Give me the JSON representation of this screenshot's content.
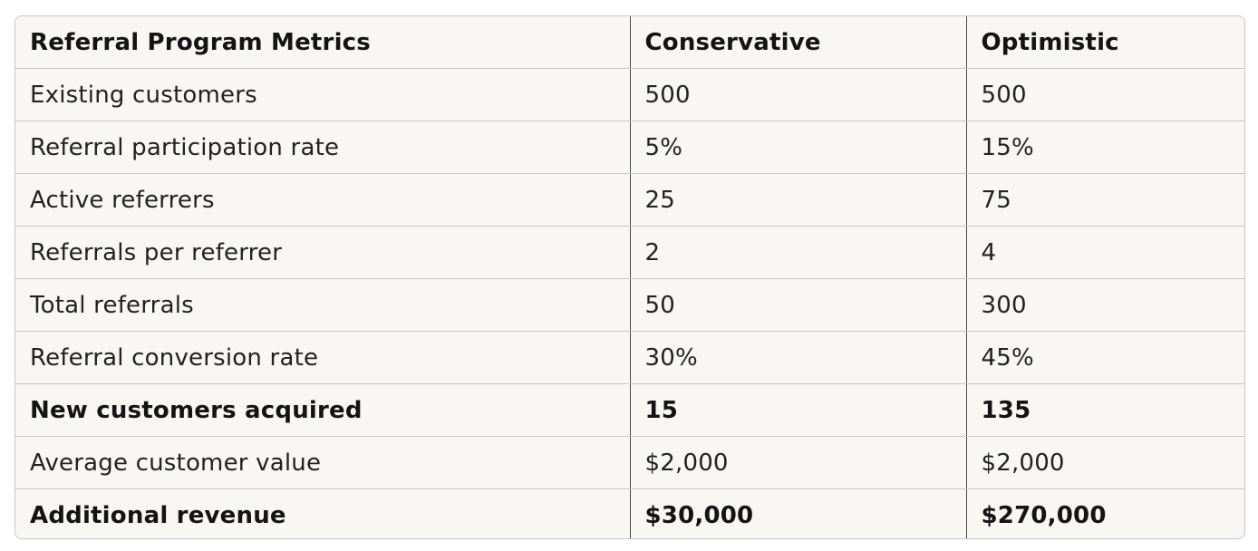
{
  "table": {
    "headers": [
      "Referral Program Metrics",
      "Conservative",
      "Optimistic"
    ],
    "rows": [
      {
        "metric": "Existing customers",
        "conservative": "500",
        "optimistic": "500",
        "bold": false
      },
      {
        "metric": "Referral participation rate",
        "conservative": "5%",
        "optimistic": "15%",
        "bold": false
      },
      {
        "metric": "Active referrers",
        "conservative": "25",
        "optimistic": "75",
        "bold": false
      },
      {
        "metric": "Referrals per referrer",
        "conservative": "2",
        "optimistic": "4",
        "bold": false
      },
      {
        "metric": "Total referrals",
        "conservative": "50",
        "optimistic": "300",
        "bold": false
      },
      {
        "metric": "Referral conversion rate",
        "conservative": "30%",
        "optimistic": "45%",
        "bold": false
      },
      {
        "metric": "New customers acquired",
        "conservative": "15",
        "optimistic": "135",
        "bold": true
      },
      {
        "metric": "Average customer value",
        "conservative": "$2,000",
        "optimistic": "$2,000",
        "bold": false
      },
      {
        "metric": "Additional revenue",
        "conservative": "$30,000",
        "optimistic": "$270,000",
        "bold": true
      }
    ]
  }
}
